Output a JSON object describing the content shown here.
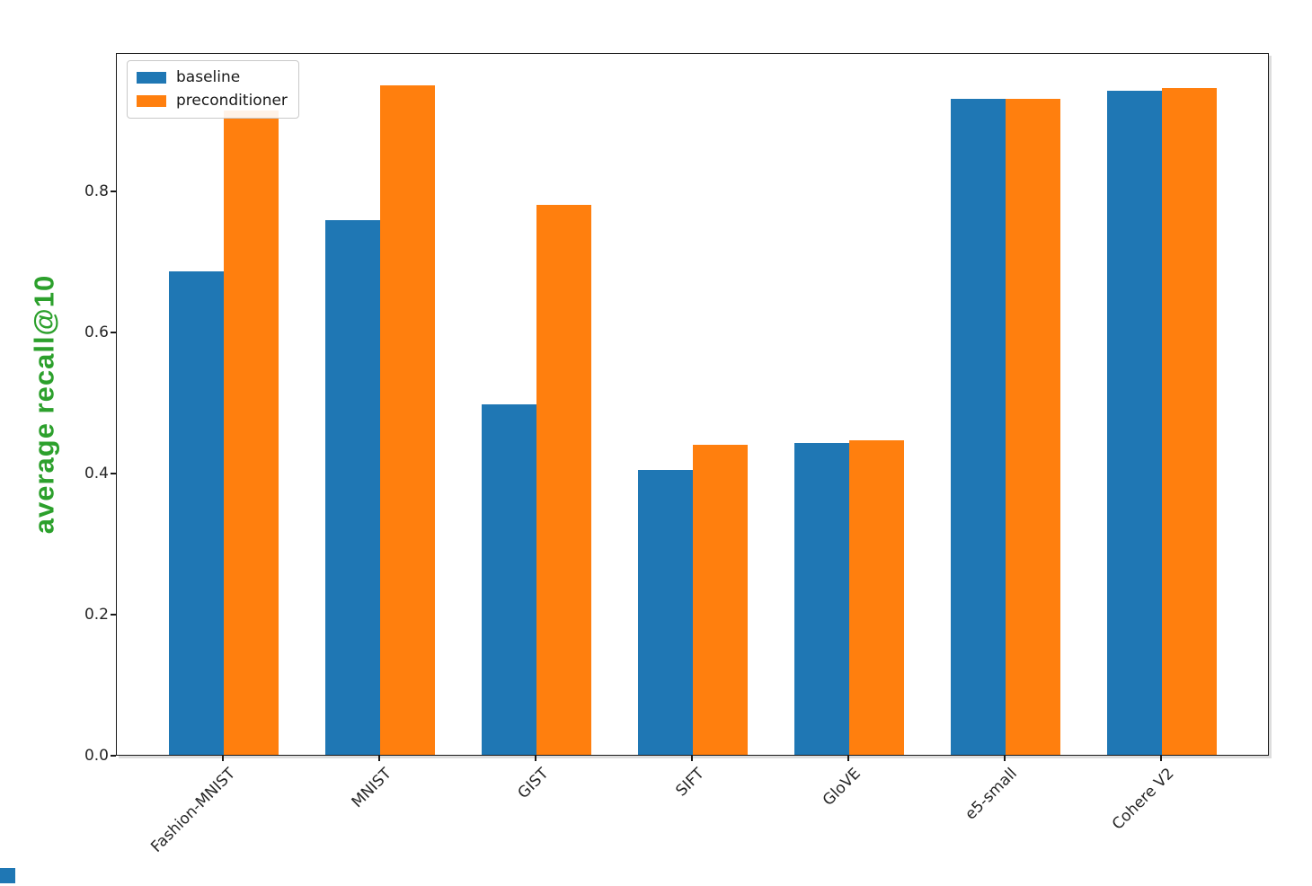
{
  "chart_data": {
    "type": "bar",
    "title": "",
    "xlabel": "",
    "ylabel": "average recall@10",
    "categories": [
      "Fashion-MNIST",
      "MNIST",
      "GIST",
      "SIFT",
      "GloVE",
      "e5-small",
      "Cohere V2"
    ],
    "series": [
      {
        "name": "baseline",
        "color": "#1f77b4",
        "values": [
          0.685,
          0.758,
          0.497,
          0.404,
          0.442,
          0.93,
          0.941
        ]
      },
      {
        "name": "preconditioner",
        "color": "#ff7f0e",
        "values": [
          0.913,
          0.949,
          0.78,
          0.439,
          0.446,
          0.93,
          0.945
        ]
      }
    ],
    "ylim": [
      0,
      1.0
    ],
    "yticks": [
      "0.0",
      "0.2",
      "0.4",
      "0.6",
      "0.8"
    ],
    "grid": false,
    "legend_position": "upper left",
    "bar_width_fraction": 0.35,
    "x_tick_rotation_deg": 45
  },
  "colors": {
    "ylabel_green": "#2ca02c",
    "axis": "#1a1a1a",
    "background": "#ffffff",
    "corner_artifact_blue": "#1f77b4"
  }
}
